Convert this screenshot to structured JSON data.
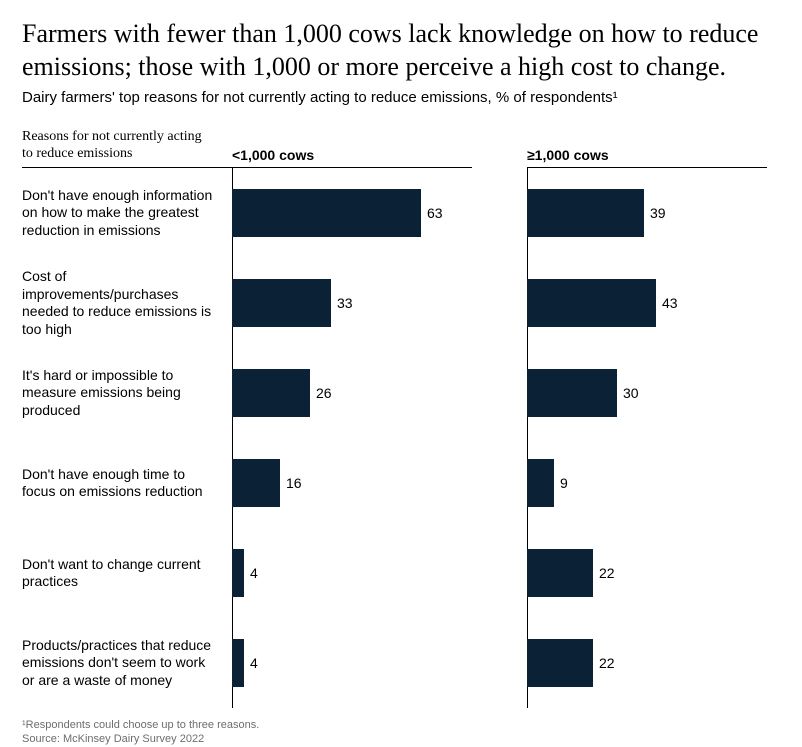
{
  "title": "Farmers with fewer than 1,000 cows lack knowledge on how to reduce emissions; those with 1,000 or more perceive a high cost to change.",
  "subtitle": "Dairy farmers' top reasons for not currently acting to reduce emissions, % of respondents¹",
  "label_header": "Reasons for not currently acting to reduce emissions",
  "groups": [
    {
      "label": "<1,000 cows",
      "max": 80
    },
    {
      "label": "≥1,000 cows",
      "max": 80
    }
  ],
  "rows": [
    {
      "label": "Don't have enough information on how to make the greatest reduction in emissions",
      "values": [
        63,
        39
      ]
    },
    {
      "label": "Cost of improvements/purchases needed to reduce emissions is too high",
      "values": [
        33,
        43
      ]
    },
    {
      "label": "It's hard or impossible to measure emissions being produced",
      "values": [
        26,
        30
      ]
    },
    {
      "label": "Don't have enough time to focus on emissions reduction",
      "values": [
        16,
        9
      ]
    },
    {
      "label": "Don't want to change current practices",
      "values": [
        4,
        22
      ]
    },
    {
      "label": "Products/practices that reduce emissions don't seem to work or are a waste of money",
      "values": [
        4,
        22
      ]
    }
  ],
  "bar_color": "#0b2236",
  "footnote": "¹Respondents could choose up to three reasons.",
  "source": "Source: McKinsey Dairy Survey 2022"
}
